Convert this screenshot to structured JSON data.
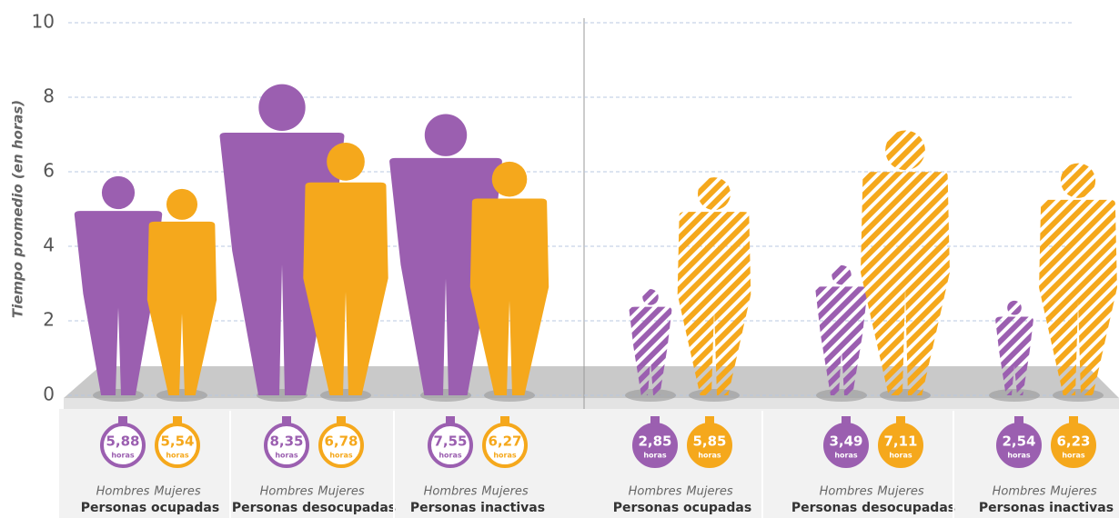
{
  "chart_data": {
    "type": "bar",
    "y_label": "Tiempo promedio (en horas)",
    "ylim": [
      0,
      10
    ],
    "yticks": [
      0,
      2,
      4,
      6,
      8,
      10
    ],
    "grid": true,
    "unit": "horas",
    "categories": [
      "Personas ocupadas",
      "Personas desocupadas",
      "Personas inactivas",
      "Personas ocupadas",
      "Personas desocupadas",
      "Personas inactivas"
    ],
    "hatched": [
      false,
      false,
      false,
      true,
      true,
      true
    ],
    "series": [
      {
        "name": "Hombres",
        "color": "#9b5fb0",
        "values": [
          5.88,
          8.35,
          7.55,
          2.85,
          3.49,
          2.54
        ],
        "value_labels": [
          "5,88",
          "8,35",
          "7,55",
          "2,85",
          "3,49",
          "2,54"
        ]
      },
      {
        "name": "Mujeres",
        "color": "#f5a81c",
        "values": [
          5.54,
          6.78,
          6.27,
          5.85,
          7.11,
          6.23
        ],
        "value_labels": [
          "5,54",
          "6,78",
          "6,27",
          "5,85",
          "7,11",
          "6,23"
        ]
      }
    ]
  }
}
